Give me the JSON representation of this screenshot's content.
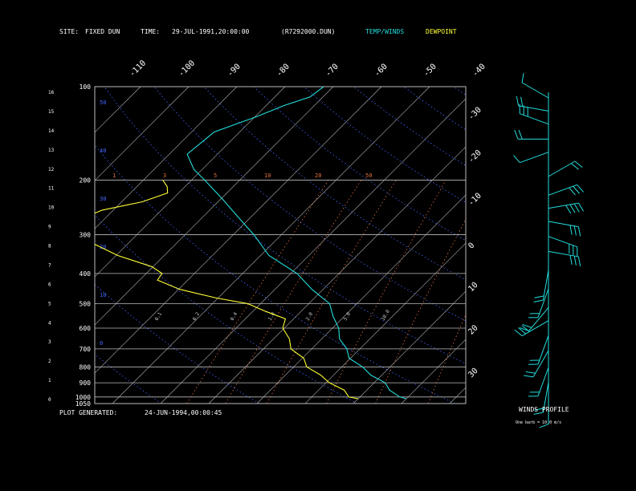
{
  "header": {
    "site_label": "SITE:",
    "site_value": "FIXED DUN",
    "time_label": "TIME:",
    "time_value": "29-JUL-1991,20:00:00",
    "file_id": "(R7292000.DUN)",
    "legend_temp": "TEMP/WINDS",
    "legend_dew": "DEWPOINT"
  },
  "footer": {
    "plot_generated_label": "PLOT GENERATED:",
    "plot_generated_value": "24-JUN-1994,00:00:45"
  },
  "winds_panel": {
    "title": "WINDS PROFILE",
    "caption": "One barb = 10.0 m/s"
  },
  "colors": {
    "temperature": "#22dddd",
    "dewpoint": "#ffff33",
    "isobar": "#bbbbbb",
    "isotherm": "#bbbbbb",
    "dry_adiabat": "#4466ff",
    "mixing_ratio": "#e07040",
    "wind_barb": "#22dddd",
    "text": "#ffffff"
  },
  "chart_data": {
    "type": "line",
    "axes": {
      "pressure_ticks_hpa": [
        "100",
        "200",
        "300",
        "400",
        "500",
        "600",
        "700",
        "800",
        "900",
        "1000",
        "1050"
      ],
      "height_ticks_km": [
        "16",
        "15",
        "14",
        "13",
        "12",
        "11",
        "10",
        "9",
        "8",
        "7",
        "6",
        "5",
        "4",
        "3",
        "2",
        "1",
        "0"
      ],
      "top_temperature_labels": [
        "-110",
        "-100",
        "-90",
        "-80",
        "-70",
        "-60",
        "-50",
        "-40"
      ],
      "right_temperature_labels": [
        "-30",
        "-20",
        "-10",
        "0",
        "10",
        "20",
        "30"
      ],
      "mixing_ratio_labels": [
        "1",
        "3",
        "5",
        "10",
        "20",
        "50"
      ],
      "mixing_ratio_small_labels": [
        "0.1",
        "0.2",
        "0.4",
        "1.0",
        "2.0",
        "5.0",
        "10.0"
      ],
      "dry_adiabat_labels": [
        "50",
        "40",
        "30",
        "20",
        "10",
        "0"
      ]
    },
    "series": [
      {
        "name": "TEMP/WINDS",
        "points": [
          [
            100,
            -62
          ],
          [
            108,
            -63
          ],
          [
            115,
            -66
          ],
          [
            125,
            -70
          ],
          [
            140,
            -75
          ],
          [
            150,
            -76
          ],
          [
            165,
            -76
          ],
          [
            185,
            -72
          ],
          [
            200,
            -67
          ],
          [
            230,
            -60
          ],
          [
            260,
            -53
          ],
          [
            300,
            -46
          ],
          [
            350,
            -38
          ],
          [
            400,
            -29
          ],
          [
            450,
            -22
          ],
          [
            500,
            -16
          ],
          [
            550,
            -12
          ],
          [
            600,
            -9
          ],
          [
            650,
            -6
          ],
          [
            700,
            -3
          ],
          [
            750,
            0
          ],
          [
            800,
            4
          ],
          [
            850,
            8
          ],
          [
            900,
            12
          ],
          [
            950,
            15
          ],
          [
            1000,
            18
          ],
          [
            1013,
            20
          ]
        ]
      },
      {
        "name": "DEWPOINT",
        "points": [
          [
            200,
            -76
          ],
          [
            210,
            -74
          ],
          [
            220,
            -72
          ],
          [
            235,
            -76
          ],
          [
            250,
            -82
          ],
          [
            265,
            -85
          ],
          [
            285,
            -82
          ],
          [
            300,
            -80
          ],
          [
            320,
            -77
          ],
          [
            350,
            -70
          ],
          [
            380,
            -60
          ],
          [
            400,
            -57
          ],
          [
            420,
            -56
          ],
          [
            450,
            -50
          ],
          [
            480,
            -40
          ],
          [
            500,
            -33
          ],
          [
            530,
            -27
          ],
          [
            560,
            -22
          ],
          [
            600,
            -20
          ],
          [
            650,
            -17
          ],
          [
            700,
            -14
          ],
          [
            750,
            -10
          ],
          [
            800,
            -7
          ],
          [
            850,
            -3
          ],
          [
            900,
            1
          ],
          [
            950,
            5
          ],
          [
            1000,
            8
          ],
          [
            1013,
            10
          ]
        ]
      }
    ],
    "wind_barbs": [
      {
        "km": 16.2,
        "speed_barbs": 1,
        "dir": 300
      },
      {
        "km": 15.5,
        "speed_barbs": 2,
        "dir": 280
      },
      {
        "km": 14.8,
        "speed_barbs": 3,
        "dir": 290
      },
      {
        "km": 14.0,
        "speed_barbs": 2,
        "dir": 270
      },
      {
        "km": 13.3,
        "speed_barbs": 1,
        "dir": 250
      },
      {
        "km": 12.0,
        "speed_barbs": 2,
        "dir": 60
      },
      {
        "km": 11.0,
        "speed_barbs": 3,
        "dir": 70
      },
      {
        "km": 10.3,
        "speed_barbs": 4,
        "dir": 80
      },
      {
        "km": 9.6,
        "speed_barbs": 3,
        "dir": 100
      },
      {
        "km": 8.8,
        "speed_barbs": 3,
        "dir": 110
      },
      {
        "km": 8.0,
        "speed_barbs": 3,
        "dir": 100
      },
      {
        "km": 7.0,
        "speed_barbs": 2,
        "dir": 190
      },
      {
        "km": 6.0,
        "speed_barbs": 2,
        "dir": 200
      },
      {
        "km": 5.0,
        "speed_barbs": 2,
        "dir": 220
      },
      {
        "km": 4.3,
        "speed_barbs": 3,
        "dir": 240
      },
      {
        "km": 3.5,
        "speed_barbs": 2,
        "dir": 200
      },
      {
        "km": 2.7,
        "speed_barbs": 2,
        "dir": 210
      },
      {
        "km": 1.8,
        "speed_barbs": 2,
        "dir": 200
      },
      {
        "km": 1.0,
        "speed_barbs": 2,
        "dir": 190
      },
      {
        "km": 0.4,
        "speed_barbs": 1,
        "dir": 180
      }
    ]
  }
}
